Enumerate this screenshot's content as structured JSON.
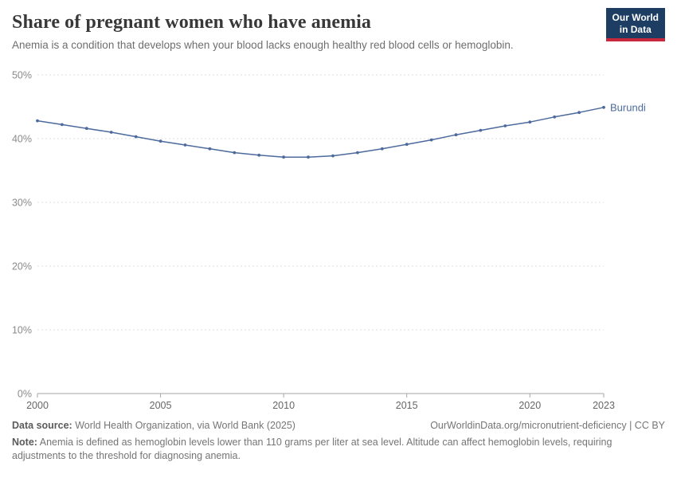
{
  "header": {
    "title": "Share of pregnant women who have anemia",
    "subtitle": "Anemia is a condition that develops when your blood lacks enough healthy red blood cells or hemoglobin.",
    "logo": {
      "line1": "Our World",
      "line2": "in Data",
      "bg_color": "#1d3d63",
      "accent_color": "#c7283c"
    }
  },
  "chart_data": {
    "type": "line",
    "title": "Share of pregnant women who have anemia",
    "xlabel": "",
    "ylabel": "",
    "xlim": [
      2000,
      2023
    ],
    "ylim": [
      0,
      50
    ],
    "xticks": [
      2000,
      2005,
      2010,
      2015,
      2020,
      2023
    ],
    "yticks": [
      0,
      10,
      20,
      30,
      40,
      50
    ],
    "ytick_suffix": "%",
    "grid": "horizontal-dashed",
    "legend_position": "end-of-line-label",
    "series": [
      {
        "name": "Burundi",
        "color": "#4c6a9c",
        "x": [
          2000,
          2001,
          2002,
          2003,
          2004,
          2005,
          2006,
          2007,
          2008,
          2009,
          2010,
          2011,
          2012,
          2013,
          2014,
          2015,
          2016,
          2017,
          2018,
          2019,
          2020,
          2021,
          2022,
          2023
        ],
        "values": [
          42.8,
          42.2,
          41.6,
          41.0,
          40.3,
          39.6,
          39.0,
          38.4,
          37.8,
          37.4,
          37.1,
          37.1,
          37.3,
          37.8,
          38.4,
          39.1,
          39.8,
          40.6,
          41.3,
          42.0,
          42.6,
          43.4,
          44.1,
          44.9
        ]
      }
    ],
    "axis_colors": {
      "grid": "#dcdcdc",
      "axis": "#a6a6a6",
      "ytick_text": "#8a8a8a",
      "xtick_text": "#666666"
    }
  },
  "footer": {
    "data_source": {
      "label": "Data source:",
      "text": "World Health Organization, via World Bank (2025)"
    },
    "license": "OurWorldinData.org/micronutrient-deficiency | CC BY",
    "note": {
      "label": "Note:",
      "text": "Anemia is defined as hemoglobin levels lower than 110 grams per liter at sea level. Altitude can affect hemoglobin levels, requiring adjustments to the threshold for diagnosing anemia."
    }
  }
}
